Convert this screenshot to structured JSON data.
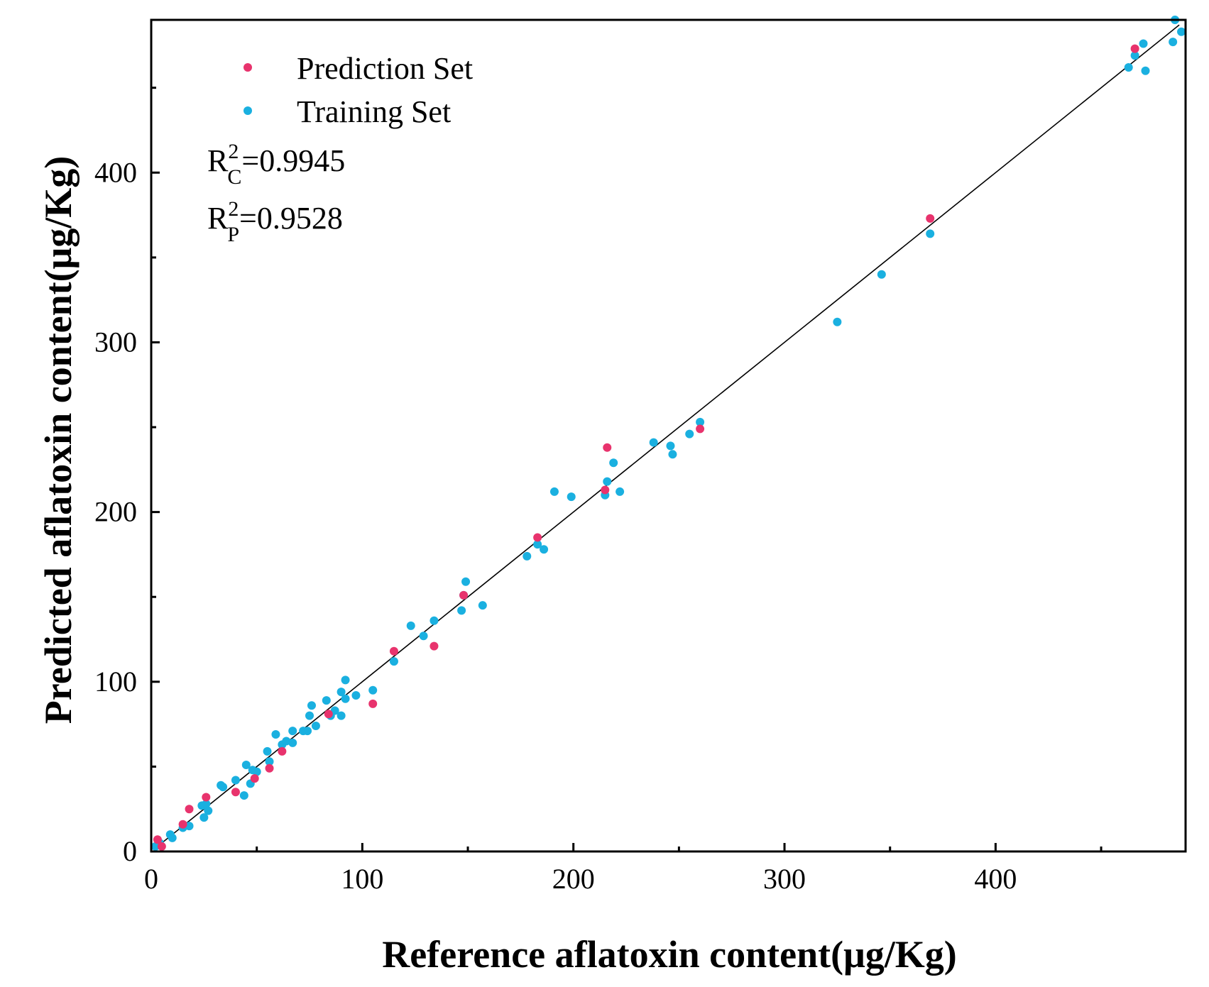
{
  "chart_data": {
    "type": "scatter",
    "xlabel": "Reference aflatoxin content(μg/Kg)",
    "ylabel": "Predicted aflatoxin content(μg/Kg)",
    "xlim": [
      0,
      490
    ],
    "ylim": [
      0,
      490
    ],
    "x_ticks": [
      0,
      100,
      200,
      300,
      400
    ],
    "y_ticks": [
      0,
      100,
      200,
      300,
      400
    ],
    "grid": false,
    "legend_position": "top-left",
    "colors": {
      "prediction": "#e8336d",
      "training": "#1ab0e0",
      "line": "#000000"
    },
    "fit_line": {
      "x": [
        2,
        487
      ],
      "y": [
        2,
        487
      ]
    },
    "annotations": {
      "r2c": {
        "base": "R",
        "sup": "2",
        "sub": "C",
        "value": "=0.9945"
      },
      "r2p": {
        "base": "R",
        "sup": "2",
        "sub": "P",
        "value": "=0.9528"
      }
    },
    "series": [
      {
        "name": "Prediction Set",
        "color": "#e8336d",
        "points": [
          [
            3,
            7
          ],
          [
            5,
            3
          ],
          [
            15,
            16
          ],
          [
            18,
            25
          ],
          [
            26,
            32
          ],
          [
            40,
            35
          ],
          [
            49,
            43
          ],
          [
            56,
            49
          ],
          [
            62,
            59
          ],
          [
            84,
            81
          ],
          [
            105,
            87
          ],
          [
            115,
            118
          ],
          [
            134,
            121
          ],
          [
            148,
            151
          ],
          [
            183,
            185
          ],
          [
            215,
            213
          ],
          [
            216,
            238
          ],
          [
            260,
            249
          ],
          [
            369,
            373
          ],
          [
            466,
            473
          ]
        ]
      },
      {
        "name": "Training Set",
        "color": "#1ab0e0",
        "points": [
          [
            2,
            3
          ],
          [
            4,
            5
          ],
          [
            9,
            10
          ],
          [
            10,
            8
          ],
          [
            15,
            14
          ],
          [
            18,
            15
          ],
          [
            24,
            27
          ],
          [
            25,
            20
          ],
          [
            26,
            28
          ],
          [
            27,
            24
          ],
          [
            33,
            39
          ],
          [
            34,
            38
          ],
          [
            40,
            42
          ],
          [
            44,
            33
          ],
          [
            45,
            51
          ],
          [
            47,
            40
          ],
          [
            48,
            48
          ],
          [
            50,
            47
          ],
          [
            55,
            59
          ],
          [
            56,
            53
          ],
          [
            59,
            69
          ],
          [
            62,
            63
          ],
          [
            64,
            65
          ],
          [
            67,
            71
          ],
          [
            67,
            64
          ],
          [
            72,
            71
          ],
          [
            74,
            71
          ],
          [
            75,
            80
          ],
          [
            76,
            86
          ],
          [
            78,
            74
          ],
          [
            83,
            89
          ],
          [
            85,
            80
          ],
          [
            87,
            83
          ],
          [
            90,
            80
          ],
          [
            90,
            94
          ],
          [
            92,
            101
          ],
          [
            92,
            90
          ],
          [
            97,
            92
          ],
          [
            105,
            95
          ],
          [
            115,
            112
          ],
          [
            123,
            133
          ],
          [
            129,
            127
          ],
          [
            134,
            136
          ],
          [
            147,
            142
          ],
          [
            148,
            151
          ],
          [
            149,
            159
          ],
          [
            157,
            145
          ],
          [
            178,
            174
          ],
          [
            183,
            181
          ],
          [
            186,
            178
          ],
          [
            191,
            212
          ],
          [
            199,
            209
          ],
          [
            215,
            210
          ],
          [
            216,
            218
          ],
          [
            219,
            229
          ],
          [
            222,
            212
          ],
          [
            238,
            241
          ],
          [
            246,
            239
          ],
          [
            247,
            234
          ],
          [
            255,
            246
          ],
          [
            260,
            253
          ],
          [
            325,
            312
          ],
          [
            346,
            340
          ],
          [
            369,
            364
          ],
          [
            463,
            462
          ],
          [
            466,
            469
          ],
          [
            470,
            476
          ],
          [
            471,
            460
          ],
          [
            484,
            477
          ],
          [
            485,
            490
          ],
          [
            488,
            483
          ]
        ]
      }
    ]
  }
}
